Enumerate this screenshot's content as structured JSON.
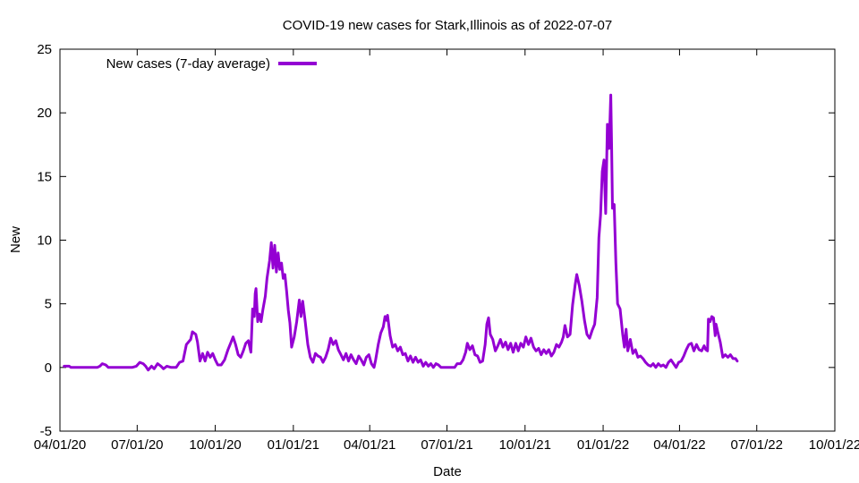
{
  "chart_data": {
    "type": "line",
    "title": "COVID-19 new cases for Stark,Illinois as of 2022-07-07",
    "xlabel": "Date",
    "ylabel": "New",
    "xlim": [
      "2020-04-01",
      "2022-10-01"
    ],
    "ylim": [
      -5,
      25
    ],
    "x_ticks": [
      "2020-04-01",
      "2020-07-01",
      "2020-10-01",
      "2021-01-01",
      "2021-04-01",
      "2021-07-01",
      "2021-10-01",
      "2022-01-01",
      "2022-04-01",
      "2022-07-01",
      "2022-10-01"
    ],
    "x_tick_labels": [
      "04/01/20",
      "07/01/20",
      "10/01/20",
      "01/01/21",
      "04/01/21",
      "07/01/21",
      "10/01/21",
      "01/01/22",
      "04/01/22",
      "07/01/22",
      "10/01/22"
    ],
    "y_ticks": [
      -5,
      0,
      5,
      10,
      15,
      20,
      25
    ],
    "y_tick_labels": [
      "-5",
      "0",
      "5",
      "10",
      "15",
      "20",
      "25"
    ],
    "grid": false,
    "legend_position": "top-left",
    "series": [
      {
        "name": "New cases (7-day average)",
        "color": "#9400d3",
        "points": [
          [
            "2020-04-06",
            0.1
          ],
          [
            "2020-04-12",
            0.1
          ],
          [
            "2020-04-14",
            0.0
          ],
          [
            "2020-05-15",
            0.0
          ],
          [
            "2020-05-18",
            0.1
          ],
          [
            "2020-05-21",
            0.3
          ],
          [
            "2020-05-25",
            0.2
          ],
          [
            "2020-05-28",
            0.0
          ],
          [
            "2020-06-25",
            0.0
          ],
          [
            "2020-06-30",
            0.1
          ],
          [
            "2020-07-04",
            0.4
          ],
          [
            "2020-07-08",
            0.3
          ],
          [
            "2020-07-11",
            0.1
          ],
          [
            "2020-07-14",
            -0.2
          ],
          [
            "2020-07-18",
            0.1
          ],
          [
            "2020-07-21",
            -0.1
          ],
          [
            "2020-07-25",
            0.3
          ],
          [
            "2020-07-29",
            0.1
          ],
          [
            "2020-08-01",
            -0.1
          ],
          [
            "2020-08-05",
            0.1
          ],
          [
            "2020-08-10",
            0.0
          ],
          [
            "2020-08-16",
            0.0
          ],
          [
            "2020-08-20",
            0.4
          ],
          [
            "2020-08-24",
            0.5
          ],
          [
            "2020-08-28",
            1.8
          ],
          [
            "2020-09-02",
            2.2
          ],
          [
            "2020-09-04",
            2.8
          ],
          [
            "2020-09-08",
            2.6
          ],
          [
            "2020-09-10",
            2.0
          ],
          [
            "2020-09-13",
            0.5
          ],
          [
            "2020-09-16",
            1.1
          ],
          [
            "2020-09-19",
            0.5
          ],
          [
            "2020-09-22",
            1.2
          ],
          [
            "2020-09-25",
            0.8
          ],
          [
            "2020-09-28",
            1.1
          ],
          [
            "2020-10-01",
            0.6
          ],
          [
            "2020-10-04",
            0.2
          ],
          [
            "2020-10-08",
            0.2
          ],
          [
            "2020-10-12",
            0.6
          ],
          [
            "2020-10-16",
            1.4
          ],
          [
            "2020-10-19",
            1.9
          ],
          [
            "2020-10-22",
            2.4
          ],
          [
            "2020-10-25",
            1.8
          ],
          [
            "2020-10-28",
            1.0
          ],
          [
            "2020-10-31",
            0.8
          ],
          [
            "2020-11-03",
            1.3
          ],
          [
            "2020-11-06",
            1.9
          ],
          [
            "2020-11-09",
            2.1
          ],
          [
            "2020-11-12",
            1.2
          ],
          [
            "2020-11-14",
            4.6
          ],
          [
            "2020-11-16",
            4.0
          ],
          [
            "2020-11-17",
            5.8
          ],
          [
            "2020-11-18",
            6.2
          ],
          [
            "2020-11-20",
            3.6
          ],
          [
            "2020-11-22",
            4.2
          ],
          [
            "2020-11-24",
            3.6
          ],
          [
            "2020-11-26",
            4.5
          ],
          [
            "2020-11-29",
            5.6
          ],
          [
            "2020-12-01",
            7.0
          ],
          [
            "2020-12-04",
            8.4
          ],
          [
            "2020-12-06",
            9.8
          ],
          [
            "2020-12-08",
            7.8
          ],
          [
            "2020-12-10",
            9.6
          ],
          [
            "2020-12-12",
            7.5
          ],
          [
            "2020-12-14",
            9.0
          ],
          [
            "2020-12-16",
            7.7
          ],
          [
            "2020-12-18",
            8.2
          ],
          [
            "2020-12-20",
            7.0
          ],
          [
            "2020-12-22",
            7.3
          ],
          [
            "2020-12-24",
            6.0
          ],
          [
            "2020-12-26",
            4.5
          ],
          [
            "2020-12-28",
            3.5
          ],
          [
            "2020-12-30",
            1.6
          ],
          [
            "2021-01-02",
            2.4
          ],
          [
            "2021-01-05",
            3.6
          ],
          [
            "2021-01-08",
            5.3
          ],
          [
            "2021-01-10",
            4.0
          ],
          [
            "2021-01-12",
            5.2
          ],
          [
            "2021-01-15",
            3.6
          ],
          [
            "2021-01-18",
            1.8
          ],
          [
            "2021-01-21",
            0.8
          ],
          [
            "2021-01-24",
            0.4
          ],
          [
            "2021-01-27",
            1.1
          ],
          [
            "2021-01-30",
            0.9
          ],
          [
            "2021-02-02",
            0.8
          ],
          [
            "2021-02-05",
            0.4
          ],
          [
            "2021-02-08",
            0.8
          ],
          [
            "2021-02-11",
            1.4
          ],
          [
            "2021-02-14",
            2.3
          ],
          [
            "2021-02-17",
            1.8
          ],
          [
            "2021-02-20",
            2.1
          ],
          [
            "2021-02-23",
            1.4
          ],
          [
            "2021-02-26",
            1.0
          ],
          [
            "2021-03-01",
            0.6
          ],
          [
            "2021-03-04",
            1.1
          ],
          [
            "2021-03-07",
            0.5
          ],
          [
            "2021-03-10",
            1.0
          ],
          [
            "2021-03-13",
            0.6
          ],
          [
            "2021-03-16",
            0.3
          ],
          [
            "2021-03-19",
            0.9
          ],
          [
            "2021-03-22",
            0.6
          ],
          [
            "2021-03-25",
            0.2
          ],
          [
            "2021-03-28",
            0.8
          ],
          [
            "2021-03-31",
            1.0
          ],
          [
            "2021-04-03",
            0.3
          ],
          [
            "2021-04-06",
            0.0
          ],
          [
            "2021-04-08",
            0.6
          ],
          [
            "2021-04-11",
            1.8
          ],
          [
            "2021-04-14",
            2.7
          ],
          [
            "2021-04-17",
            3.2
          ],
          [
            "2021-04-19",
            4.0
          ],
          [
            "2021-04-21",
            3.7
          ],
          [
            "2021-04-22",
            4.1
          ],
          [
            "2021-04-25",
            2.5
          ],
          [
            "2021-04-28",
            1.6
          ],
          [
            "2021-05-01",
            1.8
          ],
          [
            "2021-05-04",
            1.3
          ],
          [
            "2021-05-07",
            1.6
          ],
          [
            "2021-05-10",
            1.0
          ],
          [
            "2021-05-13",
            1.1
          ],
          [
            "2021-05-16",
            0.5
          ],
          [
            "2021-05-19",
            0.9
          ],
          [
            "2021-05-22",
            0.4
          ],
          [
            "2021-05-25",
            0.8
          ],
          [
            "2021-05-28",
            0.4
          ],
          [
            "2021-05-31",
            0.6
          ],
          [
            "2021-06-03",
            0.1
          ],
          [
            "2021-06-06",
            0.4
          ],
          [
            "2021-06-09",
            0.1
          ],
          [
            "2021-06-12",
            0.3
          ],
          [
            "2021-06-15",
            0.0
          ],
          [
            "2021-06-18",
            0.3
          ],
          [
            "2021-06-21",
            0.2
          ],
          [
            "2021-06-24",
            0.0
          ],
          [
            "2021-07-01",
            0.0
          ],
          [
            "2021-07-10",
            0.0
          ],
          [
            "2021-07-13",
            0.3
          ],
          [
            "2021-07-17",
            0.3
          ],
          [
            "2021-07-20",
            0.6
          ],
          [
            "2021-07-23",
            1.2
          ],
          [
            "2021-07-25",
            1.9
          ],
          [
            "2021-07-28",
            1.4
          ],
          [
            "2021-07-31",
            1.7
          ],
          [
            "2021-08-03",
            1.0
          ],
          [
            "2021-08-06",
            0.9
          ],
          [
            "2021-08-09",
            0.4
          ],
          [
            "2021-08-12",
            0.5
          ],
          [
            "2021-08-15",
            1.8
          ],
          [
            "2021-08-17",
            3.4
          ],
          [
            "2021-08-19",
            3.9
          ],
          [
            "2021-08-21",
            2.6
          ],
          [
            "2021-08-24",
            2.2
          ],
          [
            "2021-08-27",
            1.3
          ],
          [
            "2021-08-30",
            1.7
          ],
          [
            "2021-09-02",
            2.2
          ],
          [
            "2021-09-05",
            1.6
          ],
          [
            "2021-09-08",
            2.0
          ],
          [
            "2021-09-11",
            1.4
          ],
          [
            "2021-09-14",
            1.9
          ],
          [
            "2021-09-17",
            1.2
          ],
          [
            "2021-09-20",
            1.9
          ],
          [
            "2021-09-23",
            1.3
          ],
          [
            "2021-09-26",
            1.9
          ],
          [
            "2021-09-29",
            1.6
          ],
          [
            "2021-10-02",
            2.4
          ],
          [
            "2021-10-05",
            1.8
          ],
          [
            "2021-10-08",
            2.3
          ],
          [
            "2021-10-11",
            1.6
          ],
          [
            "2021-10-14",
            1.3
          ],
          [
            "2021-10-17",
            1.5
          ],
          [
            "2021-10-20",
            1.0
          ],
          [
            "2021-10-23",
            1.4
          ],
          [
            "2021-10-26",
            1.1
          ],
          [
            "2021-10-29",
            1.4
          ],
          [
            "2021-11-01",
            0.9
          ],
          [
            "2021-11-04",
            1.2
          ],
          [
            "2021-11-07",
            1.8
          ],
          [
            "2021-11-10",
            1.6
          ],
          [
            "2021-11-13",
            2.0
          ],
          [
            "2021-11-15",
            2.4
          ],
          [
            "2021-11-17",
            3.3
          ],
          [
            "2021-11-20",
            2.4
          ],
          [
            "2021-11-23",
            2.6
          ],
          [
            "2021-11-26",
            4.9
          ],
          [
            "2021-11-29",
            6.5
          ],
          [
            "2021-12-01",
            7.3
          ],
          [
            "2021-12-04",
            6.4
          ],
          [
            "2021-12-07",
            5.2
          ],
          [
            "2021-12-10",
            3.7
          ],
          [
            "2021-12-13",
            2.6
          ],
          [
            "2021-12-16",
            2.3
          ],
          [
            "2021-12-19",
            2.9
          ],
          [
            "2021-12-22",
            3.4
          ],
          [
            "2021-12-25",
            5.5
          ],
          [
            "2021-12-27",
            10.2
          ],
          [
            "2021-12-29",
            12.0
          ],
          [
            "2021-12-31",
            15.4
          ],
          [
            "2022-01-02",
            16.3
          ],
          [
            "2022-01-04",
            12.1
          ],
          [
            "2022-01-06",
            19.1
          ],
          [
            "2022-01-08",
            17.2
          ],
          [
            "2022-01-10",
            21.4
          ],
          [
            "2022-01-11",
            17.5
          ],
          [
            "2022-01-12",
            12.5
          ],
          [
            "2022-01-14",
            12.8
          ],
          [
            "2022-01-16",
            8.2
          ],
          [
            "2022-01-18",
            5.0
          ],
          [
            "2022-01-21",
            4.6
          ],
          [
            "2022-01-24",
            2.6
          ],
          [
            "2022-01-26",
            1.6
          ],
          [
            "2022-01-28",
            3.0
          ],
          [
            "2022-01-30",
            1.3
          ],
          [
            "2022-02-02",
            2.2
          ],
          [
            "2022-02-05",
            1.1
          ],
          [
            "2022-02-08",
            1.4
          ],
          [
            "2022-02-11",
            0.8
          ],
          [
            "2022-02-14",
            0.9
          ],
          [
            "2022-02-17",
            0.7
          ],
          [
            "2022-02-20",
            0.4
          ],
          [
            "2022-02-23",
            0.2
          ],
          [
            "2022-02-26",
            0.1
          ],
          [
            "2022-03-01",
            0.3
          ],
          [
            "2022-03-04",
            0.0
          ],
          [
            "2022-03-07",
            0.3
          ],
          [
            "2022-03-10",
            0.1
          ],
          [
            "2022-03-13",
            0.2
          ],
          [
            "2022-03-16",
            0.0
          ],
          [
            "2022-03-19",
            0.4
          ],
          [
            "2022-03-22",
            0.6
          ],
          [
            "2022-03-25",
            0.3
          ],
          [
            "2022-03-28",
            0.0
          ],
          [
            "2022-03-31",
            0.4
          ],
          [
            "2022-04-03",
            0.5
          ],
          [
            "2022-04-06",
            0.9
          ],
          [
            "2022-04-09",
            1.4
          ],
          [
            "2022-04-12",
            1.8
          ],
          [
            "2022-04-15",
            1.9
          ],
          [
            "2022-04-18",
            1.3
          ],
          [
            "2022-04-21",
            1.8
          ],
          [
            "2022-04-24",
            1.4
          ],
          [
            "2022-04-27",
            1.3
          ],
          [
            "2022-04-30",
            1.7
          ],
          [
            "2022-05-02",
            1.4
          ],
          [
            "2022-05-04",
            1.3
          ],
          [
            "2022-05-05",
            3.8
          ],
          [
            "2022-05-07",
            3.6
          ],
          [
            "2022-05-09",
            4.0
          ],
          [
            "2022-05-11",
            3.9
          ],
          [
            "2022-05-13",
            2.5
          ],
          [
            "2022-05-14",
            3.4
          ],
          [
            "2022-05-16",
            2.8
          ],
          [
            "2022-05-19",
            2.0
          ],
          [
            "2022-05-22",
            0.8
          ],
          [
            "2022-05-25",
            1.0
          ],
          [
            "2022-05-28",
            0.8
          ],
          [
            "2022-05-31",
            1.0
          ],
          [
            "2022-06-03",
            0.7
          ],
          [
            "2022-06-06",
            0.7
          ],
          [
            "2022-06-08",
            0.5
          ]
        ]
      }
    ]
  }
}
